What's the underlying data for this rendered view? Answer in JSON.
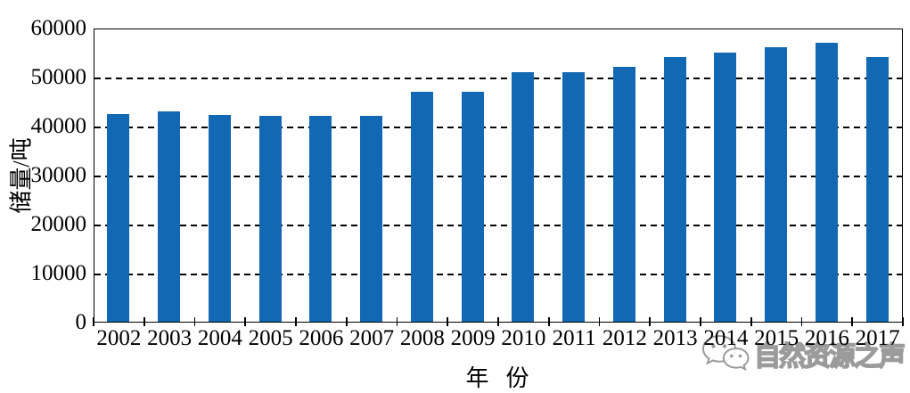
{
  "chart_data": {
    "type": "bar",
    "categories": [
      "2002",
      "2003",
      "2004",
      "2005",
      "2006",
      "2007",
      "2008",
      "2009",
      "2010",
      "2011",
      "2012",
      "2013",
      "2014",
      "2015",
      "2016",
      "2017"
    ],
    "values": [
      42500,
      43000,
      42200,
      42100,
      42100,
      42000,
      47000,
      47000,
      51000,
      50900,
      52000,
      54000,
      55000,
      56000,
      57000,
      54000
    ],
    "title": "",
    "xlabel": "年  份",
    "ylabel": "储量/吨",
    "ylim": [
      0,
      60000
    ],
    "ytick_step": 10000,
    "yticks": [
      "0",
      "10000",
      "20000",
      "30000",
      "40000",
      "50000",
      "60000"
    ],
    "bar_color": "#1268b2",
    "axis_color": "#000000",
    "grid": "dashed-horizontal",
    "legend_position": "none"
  },
  "watermark": {
    "text": "自然资源之声",
    "icon": "wechat-icon"
  }
}
